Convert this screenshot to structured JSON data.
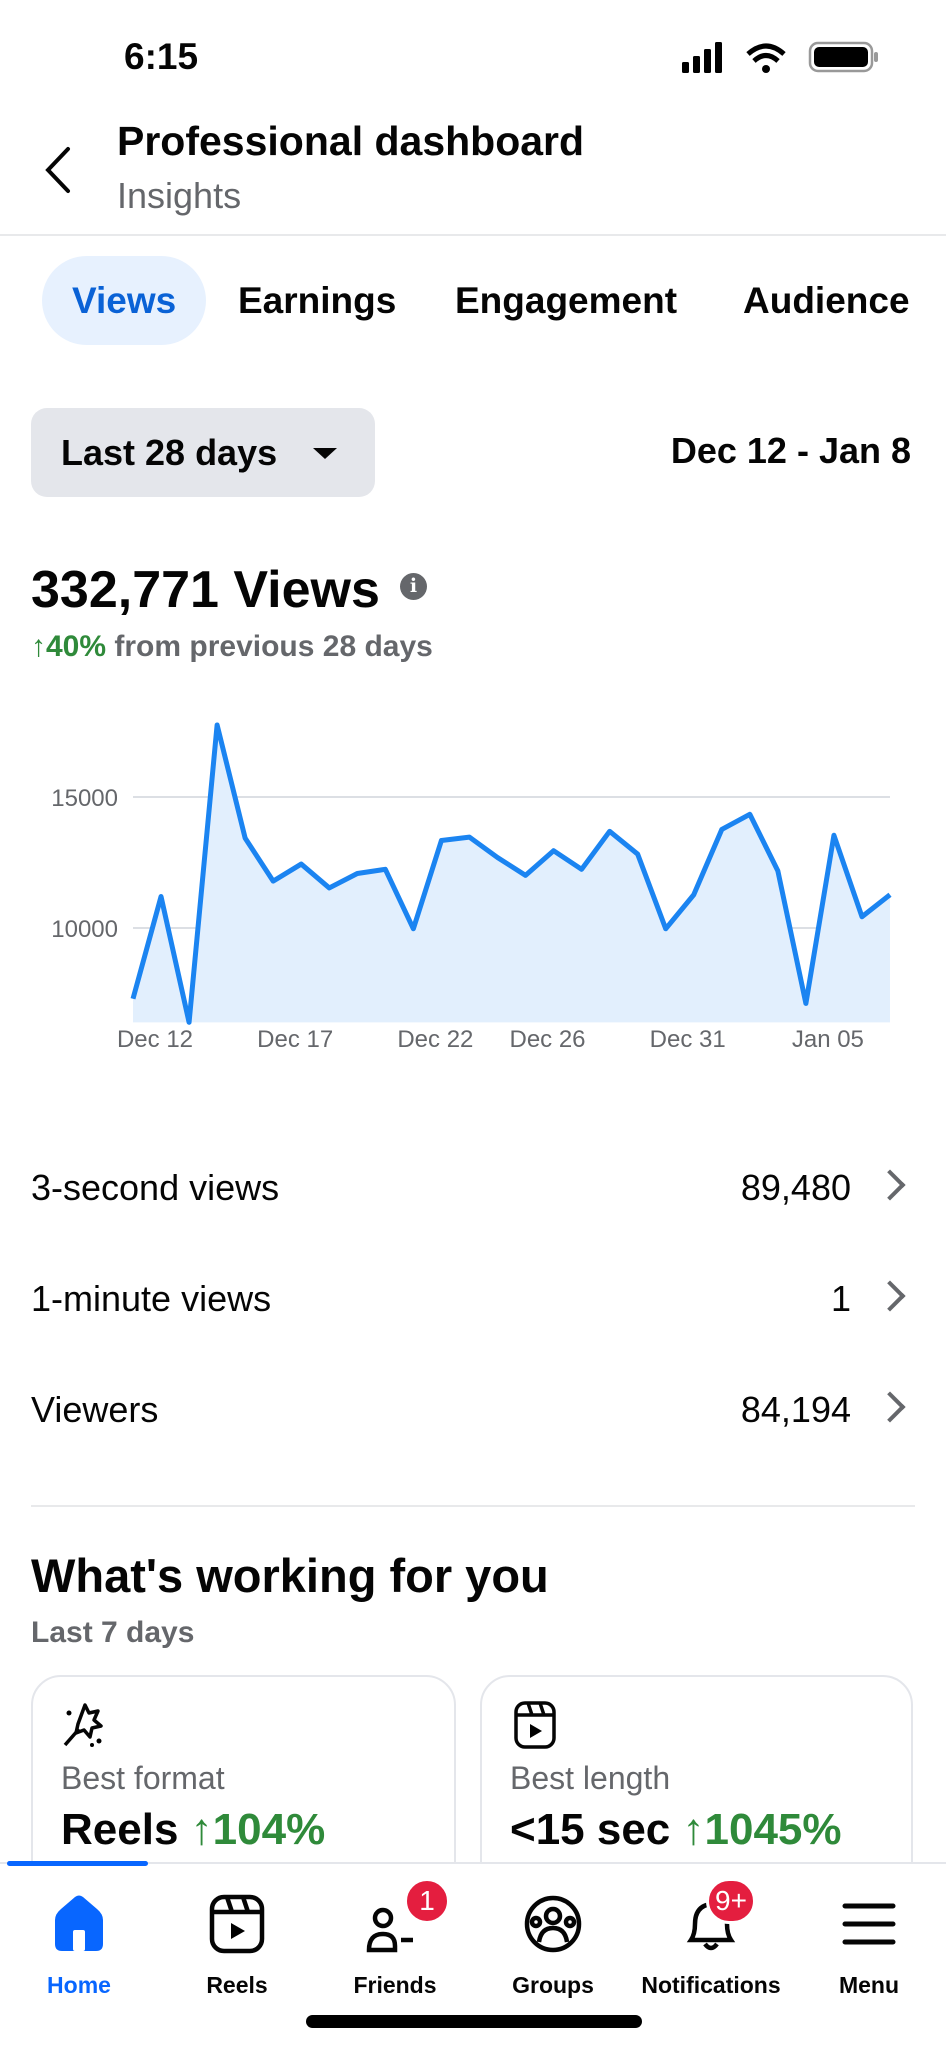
{
  "status_bar": {
    "time": "6:15",
    "icons": [
      "signal-icon",
      "wifi-icon",
      "battery-icon"
    ]
  },
  "header": {
    "title": "Professional dashboard",
    "subtitle": "Insights"
  },
  "tabs": [
    {
      "label": "Views",
      "active": true
    },
    {
      "label": "Earnings"
    },
    {
      "label": "Engagement"
    },
    {
      "label": "Audience"
    }
  ],
  "filter": {
    "selected": "Last 28 days",
    "date_range": "Dec 12 - Jan 8"
  },
  "summary": {
    "total": "332,771 Views",
    "change": "↑40%",
    "change_text": "from previous 28 days"
  },
  "chart_data": {
    "type": "area",
    "x": [
      "Dec 12",
      "Dec 13",
      "Dec 14",
      "Dec 15",
      "Dec 16",
      "Dec 17",
      "Dec 18",
      "Dec 19",
      "Dec 20",
      "Dec 21",
      "Dec 22",
      "Dec 23",
      "Dec 24",
      "Dec 25",
      "Dec 26",
      "Dec 27",
      "Dec 28",
      "Dec 29",
      "Dec 30",
      "Dec 31",
      "Jan 01",
      "Jan 02",
      "Jan 03",
      "Jan 04",
      "Jan 05",
      "Jan 06",
      "Jan 07",
      "Jan 08"
    ],
    "values": [
      7300,
      11200,
      6400,
      17750,
      13430,
      11790,
      12440,
      11530,
      12080,
      12240,
      9970,
      13340,
      13470,
      12690,
      12010,
      12950,
      12240,
      13690,
      12820,
      9970,
      11270,
      13760,
      14340,
      12180,
      7120,
      13540,
      10430,
      11270
    ],
    "x_tick_labels": [
      "Dec 12",
      "Dec 17",
      "Dec 22",
      "Dec 26",
      "Dec 31",
      "Jan 05"
    ],
    "x_tick_indices": [
      0,
      5,
      10,
      14,
      19,
      24
    ],
    "y_tick_labels": [
      "15000",
      "10000"
    ],
    "y_ticks": [
      15000,
      10000
    ],
    "ylim": [
      6400,
      18000
    ],
    "grid": true,
    "color": "#1b84f1",
    "fill": "#e2effd"
  },
  "metrics": [
    {
      "label": "3-second views",
      "value": "89,480"
    },
    {
      "label": "1-minute views",
      "value": "1"
    },
    {
      "label": "Viewers",
      "value": "84,194"
    }
  ],
  "working": {
    "title": "What's working for you",
    "period": "Last 7 days",
    "cards": [
      {
        "icon": "magic-wand-icon",
        "label": "Best format",
        "value": "Reels",
        "change": "↑104%"
      },
      {
        "icon": "reels-icon",
        "label": "Best length",
        "value": "<15 sec",
        "change": "↑1045%"
      }
    ]
  },
  "nav": {
    "items": [
      {
        "label": "Home",
        "active": true
      },
      {
        "label": "Reels"
      },
      {
        "label": "Friends",
        "badge": "1"
      },
      {
        "label": "Groups"
      },
      {
        "label": "Notifications",
        "badge": "9+"
      },
      {
        "label": "Menu"
      }
    ],
    "active_color": "#0866ff",
    "badge_color": "#e41e3f"
  }
}
